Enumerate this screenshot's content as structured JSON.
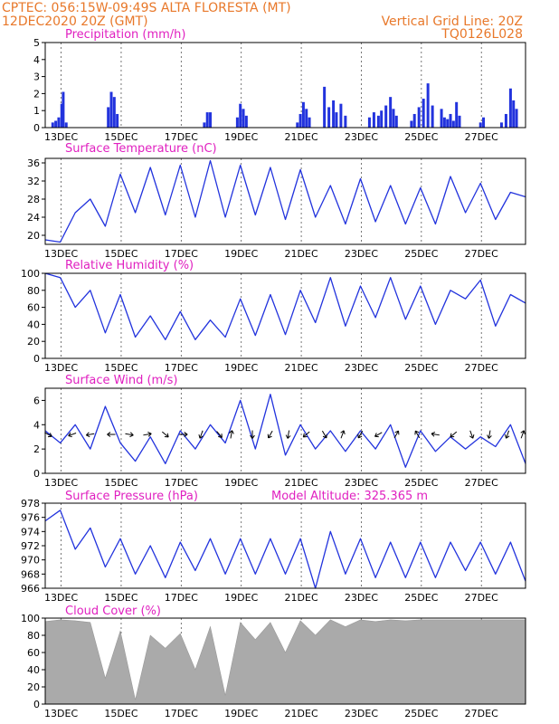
{
  "header": {
    "source_coords": "CPTEC:   056:15W-09:49S   ALTA FLORESTA (MT)",
    "date": "12DEC2020 20Z (GMT)",
    "grid_note": "Vertical Grid Line: 20Z",
    "run_code": "TQ0126L028"
  },
  "colors": {
    "line": "#2233dd",
    "bar": "#2233dd",
    "cloud": "#aaaaaa",
    "header": "#e8782a",
    "title": "#e020c0"
  },
  "x_ticks": [
    "13DEC",
    "15DEC",
    "17DEC",
    "19DEC",
    "21DEC",
    "23DEC",
    "25DEC",
    "27DEC"
  ],
  "chart_data": [
    {
      "type": "bar",
      "title": "Precipitation (mm/h)",
      "ylim": [
        0,
        5
      ],
      "yticks": [
        0,
        1,
        2,
        3,
        4,
        5
      ],
      "x_unit": "days since 12DEC2020 20Z",
      "x": [
        0.25,
        0.35,
        0.45,
        0.55,
        0.6,
        0.7,
        2.1,
        2.2,
        2.3,
        2.4,
        5.3,
        5.4,
        5.5,
        6.4,
        6.5,
        6.6,
        6.7,
        8.4,
        8.5,
        8.6,
        8.7,
        8.8,
        9.3,
        9.45,
        9.6,
        9.7,
        9.85,
        10.0,
        10.8,
        10.95,
        11.1,
        11.2,
        11.35,
        11.5,
        11.6,
        11.7,
        12.2,
        12.3,
        12.45,
        12.6,
        12.75,
        12.9,
        13.2,
        13.3,
        13.4,
        13.5,
        13.6,
        13.7,
        13.8,
        14.5,
        14.6,
        15.2,
        15.35,
        15.5,
        15.6,
        15.7
      ],
      "values": [
        0.3,
        0.4,
        0.6,
        1.4,
        2.1,
        0.3,
        1.2,
        2.1,
        1.8,
        0.8,
        0.3,
        0.9,
        0.9,
        0.6,
        1.4,
        1.1,
        0.7,
        0.3,
        0.8,
        1.5,
        1.1,
        0.6,
        2.4,
        1.2,
        1.6,
        0.9,
        1.4,
        0.7,
        0.6,
        0.9,
        0.7,
        1.0,
        1.3,
        1.8,
        1.1,
        0.7,
        0.4,
        0.8,
        1.2,
        1.7,
        2.6,
        1.3,
        1.1,
        0.6,
        0.5,
        0.8,
        0.4,
        1.5,
        0.7,
        0.3,
        0.6,
        0.3,
        0.8,
        2.3,
        1.6,
        1.1
      ]
    },
    {
      "type": "line",
      "title": "Surface Temperature (nC)",
      "ylim": [
        18,
        37
      ],
      "yticks": [
        20,
        24,
        28,
        32,
        36
      ],
      "x_unit": "days since 12DEC2020 20Z",
      "x": [
        0.0,
        0.5,
        1.0,
        1.5,
        2.0,
        2.5,
        3.0,
        3.5,
        4.0,
        4.5,
        5.0,
        5.5,
        6.0,
        6.5,
        7.0,
        7.5,
        8.0,
        8.5,
        9.0,
        9.5,
        10.0,
        10.5,
        11.0,
        11.5,
        12.0,
        12.5,
        13.0,
        13.5,
        14.0,
        14.5,
        15.0,
        15.5,
        16.0
      ],
      "values": [
        19.0,
        18.5,
        25.0,
        28.0,
        22.0,
        33.5,
        25.0,
        35.0,
        24.5,
        35.5,
        24.0,
        36.5,
        24.0,
        35.5,
        24.5,
        35.0,
        23.5,
        34.5,
        24.0,
        31.0,
        22.5,
        32.5,
        23.0,
        31.0,
        22.5,
        30.5,
        22.5,
        33.0,
        25.0,
        31.5,
        23.5,
        29.5,
        28.5
      ]
    },
    {
      "type": "line",
      "title": "Relative Humidity (%)",
      "ylim": [
        0,
        100
      ],
      "yticks": [
        0,
        20,
        40,
        60,
        80,
        100
      ],
      "x_unit": "days since 12DEC2020 20Z",
      "x": [
        0.0,
        0.5,
        1.0,
        1.5,
        2.0,
        2.5,
        3.0,
        3.5,
        4.0,
        4.5,
        5.0,
        5.5,
        6.0,
        6.5,
        7.0,
        7.5,
        8.0,
        8.5,
        9.0,
        9.5,
        10.0,
        10.5,
        11.0,
        11.5,
        12.0,
        12.5,
        13.0,
        13.5,
        14.0,
        14.5,
        15.0,
        15.5,
        16.0
      ],
      "values": [
        100,
        95,
        60,
        80,
        30,
        75,
        25,
        50,
        22,
        55,
        22,
        45,
        25,
        70,
        27,
        75,
        28,
        80,
        42,
        95,
        38,
        85,
        48,
        95,
        46,
        85,
        40,
        80,
        70,
        92,
        38,
        75,
        65
      ]
    },
    {
      "type": "line",
      "title": "Surface Wind (m/s)",
      "ylim": [
        0,
        7
      ],
      "yticks": [
        0,
        2,
        4,
        6
      ],
      "x_unit": "days since 12DEC2020 20Z",
      "x": [
        0.0,
        0.5,
        1.0,
        1.5,
        2.0,
        2.5,
        3.0,
        3.5,
        4.0,
        4.5,
        5.0,
        5.5,
        6.0,
        6.5,
        7.0,
        7.5,
        8.0,
        8.5,
        9.0,
        9.5,
        10.0,
        10.5,
        11.0,
        11.5,
        12.0,
        12.5,
        13.0,
        13.5,
        14.0,
        14.5,
        15.0,
        15.5,
        16.0
      ],
      "values": [
        3.5,
        2.5,
        4.0,
        2.0,
        5.5,
        2.5,
        1.0,
        3.0,
        0.8,
        3.5,
        2.0,
        4.0,
        2.5,
        6.0,
        2.0,
        6.5,
        1.5,
        4.0,
        2.0,
        3.5,
        1.8,
        3.5,
        2.0,
        4.0,
        0.5,
        3.5,
        1.8,
        3.0,
        2.0,
        3.0,
        2.2,
        4.0,
        0.8
      ]
    },
    {
      "type": "line",
      "title": "Surface Pressure (hPa)",
      "annotation": "Model Altitude: 325.365 m",
      "ylim": [
        966,
        978
      ],
      "yticks": [
        966,
        968,
        970,
        972,
        974,
        976,
        978
      ],
      "x_unit": "days since 12DEC2020 20Z",
      "x": [
        0.0,
        0.5,
        1.0,
        1.5,
        2.0,
        2.5,
        3.0,
        3.5,
        4.0,
        4.5,
        5.0,
        5.5,
        6.0,
        6.5,
        7.0,
        7.5,
        8.0,
        8.5,
        9.0,
        9.5,
        10.0,
        10.5,
        11.0,
        11.5,
        12.0,
        12.5,
        13.0,
        13.5,
        14.0,
        14.5,
        15.0,
        15.5,
        16.0
      ],
      "values": [
        975.5,
        977.0,
        971.5,
        974.5,
        969.0,
        973.0,
        968.0,
        972.0,
        967.5,
        972.5,
        968.5,
        973.0,
        968.0,
        973.0,
        968.0,
        973.0,
        968.0,
        973.0,
        966.0,
        974.0,
        968.0,
        973.0,
        967.5,
        972.5,
        967.5,
        972.5,
        967.5,
        972.5,
        968.5,
        972.5,
        968.0,
        972.5,
        967.0
      ]
    },
    {
      "type": "area",
      "title": "Cloud Cover (%)",
      "ylim": [
        0,
        100
      ],
      "yticks": [
        0,
        20,
        40,
        60,
        80,
        100
      ],
      "x_unit": "days since 12DEC2020 20Z",
      "x": [
        0.0,
        0.5,
        1.0,
        1.5,
        2.0,
        2.5,
        3.0,
        3.5,
        4.0,
        4.5,
        5.0,
        5.5,
        6.0,
        6.5,
        7.0,
        7.5,
        8.0,
        8.5,
        9.0,
        9.5,
        10.0,
        10.5,
        11.0,
        11.5,
        12.0,
        12.5,
        13.0,
        13.5,
        14.0,
        14.5,
        15.0,
        15.5,
        16.0
      ],
      "values": [
        96,
        98,
        97,
        95,
        30,
        85,
        5,
        80,
        65,
        82,
        40,
        90,
        10,
        95,
        75,
        95,
        60,
        97,
        80,
        98,
        90,
        98,
        96,
        98,
        97,
        98,
        98,
        98,
        98,
        98,
        98,
        98,
        98
      ]
    }
  ],
  "wind_arrows": [
    {
      "x": 0.1,
      "dir": 120
    },
    {
      "x": 0.9,
      "dir": 250
    },
    {
      "x": 1.5,
      "dir": 260
    },
    {
      "x": 2.2,
      "dir": 270
    },
    {
      "x": 2.8,
      "dir": 100
    },
    {
      "x": 3.4,
      "dir": 80
    },
    {
      "x": 4.0,
      "dir": 130
    },
    {
      "x": 4.6,
      "dir": 90
    },
    {
      "x": 5.2,
      "dir": 200
    },
    {
      "x": 5.8,
      "dir": 140
    },
    {
      "x": 6.2,
      "dir": 10
    },
    {
      "x": 6.9,
      "dir": 180
    },
    {
      "x": 7.5,
      "dir": 210
    },
    {
      "x": 8.1,
      "dir": 190
    },
    {
      "x": 8.7,
      "dir": 230
    },
    {
      "x": 9.3,
      "dir": 150
    },
    {
      "x": 9.9,
      "dir": 20
    },
    {
      "x": 10.5,
      "dir": 210
    },
    {
      "x": 11.1,
      "dir": 240
    },
    {
      "x": 11.7,
      "dir": 30
    },
    {
      "x": 12.4,
      "dir": 330
    },
    {
      "x": 13.0,
      "dir": 280
    },
    {
      "x": 13.6,
      "dir": 230
    },
    {
      "x": 14.2,
      "dir": 160
    },
    {
      "x": 14.8,
      "dir": 190
    },
    {
      "x": 15.4,
      "dir": 200
    },
    {
      "x": 15.9,
      "dir": 20
    }
  ]
}
